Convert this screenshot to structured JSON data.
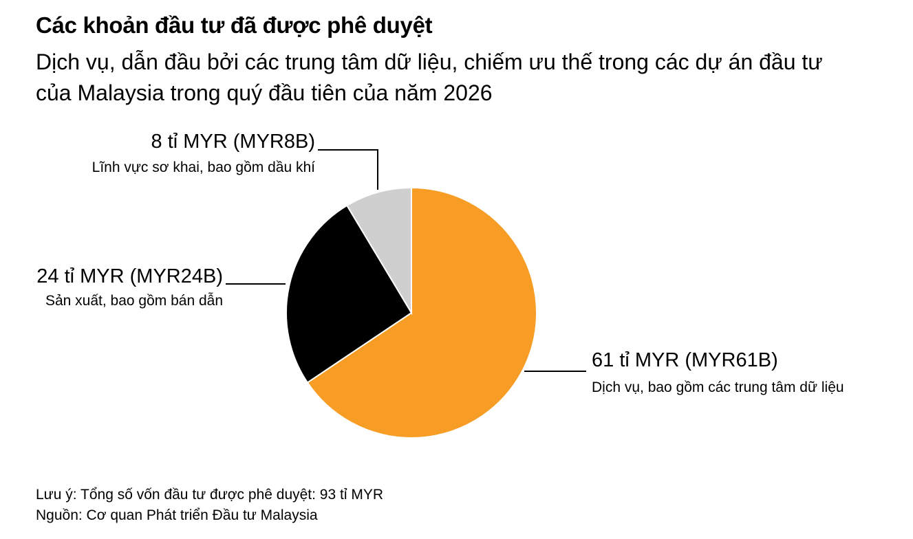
{
  "chart_data": {
    "type": "pie",
    "title": "Các khoản đầu tư đã được phê duyệt",
    "subtitle": "Dịch vụ, dẫn đầu bởi các trung tâm dữ liệu, chiếm ưu thế trong các dự án đầu tư của Malaysia trong quý đầu tiên của năm 2026",
    "categories": [
      "Dịch vụ, bao gồm các trung tâm dữ liệu",
      "Sản xuất, bao gồm bán dẫn",
      "Lĩnh vực sơ khai, bao gồm dầu khí"
    ],
    "values": [
      61,
      24,
      8
    ],
    "value_labels": [
      "61 tỉ MYR (MYR61B)",
      "24 tỉ MYR (MYR24B)",
      "8 tỉ MYR (MYR8B)"
    ],
    "colors": [
      "#f79c25",
      "#000000",
      "#cfcfcf"
    ],
    "note": "Lưu ý: Tổng số vốn đầu tư được phê duyệt: 93 tỉ MYR",
    "source": "Nguồn: Cơ quan Phát triển Đầu tư Malaysia"
  }
}
